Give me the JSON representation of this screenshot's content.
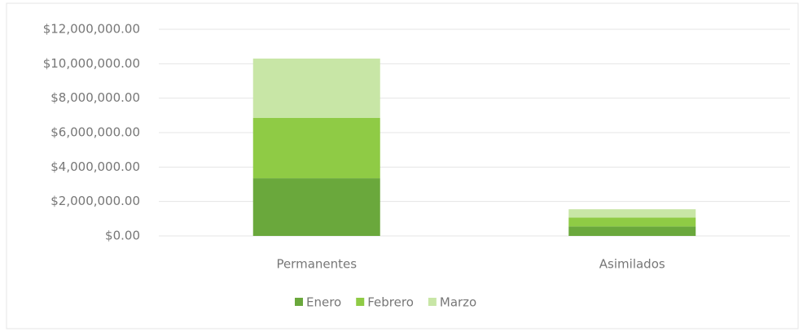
{
  "chart_data": {
    "type": "stacked_bar",
    "categories": [
      "Permanentes",
      "Asimilados"
    ],
    "series": [
      {
        "name": "Enero",
        "color": "#6aa83c",
        "values": [
          3350000,
          550000
        ]
      },
      {
        "name": "Febrero",
        "color": "#8fcb45",
        "values": [
          3500000,
          520000
        ]
      },
      {
        "name": "Marzo",
        "color": "#c8e6a6",
        "values": [
          3450000,
          480000
        ]
      }
    ],
    "ylim": [
      0,
      12000000
    ],
    "yticks": [
      {
        "value": 0,
        "label": "$0.00"
      },
      {
        "value": 2000000,
        "label": "$2,000,000.00"
      },
      {
        "value": 4000000,
        "label": "$4,000,000.00"
      },
      {
        "value": 6000000,
        "label": "$6,000,000.00"
      },
      {
        "value": 8000000,
        "label": "$8,000,000.00"
      },
      {
        "value": 10000000,
        "label": "$10,000,000.00"
      },
      {
        "value": 12000000,
        "label": "$12,000,000.00"
      }
    ],
    "grid": true,
    "legend": "bottom"
  }
}
